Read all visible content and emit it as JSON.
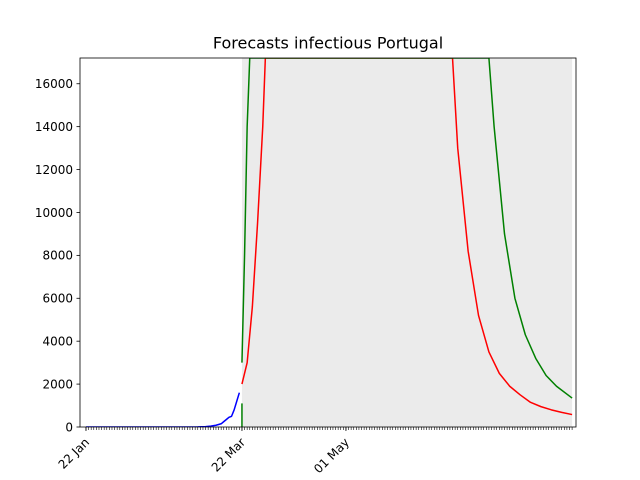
{
  "chart_data": {
    "type": "line",
    "title": "Forecasts infectious Portugal",
    "xlabel": "",
    "ylabel": "",
    "x_axis": {
      "type": "date",
      "range": [
        "2020-01-22",
        "2020-07-27"
      ],
      "tick_labels": [
        {
          "date": "2020-01-22",
          "label": "22 Jan"
        },
        {
          "date": "2020-03-22",
          "label": "22 Mar"
        },
        {
          "date": "2020-05-01",
          "label": "01 May"
        }
      ],
      "minor_ticks": "daily"
    },
    "y_axis": {
      "range": [
        0,
        17200
      ],
      "ticks": [
        0,
        2000,
        4000,
        6000,
        8000,
        10000,
        12000,
        14000,
        16000
      ]
    },
    "grid": false,
    "legend": "none",
    "band": {
      "description": "forecast uncertainty range",
      "color": "#ebebeb",
      "from": "2020-03-22",
      "to": "2020-07-27"
    },
    "series": [
      {
        "role": "observed",
        "color": "#0000ff",
        "points": [
          [
            "2020-01-22",
            0
          ],
          [
            "2020-02-01",
            0
          ],
          [
            "2020-02-10",
            0
          ],
          [
            "2020-02-20",
            0
          ],
          [
            "2020-03-01",
            0
          ],
          [
            "2020-03-05",
            5
          ],
          [
            "2020-03-08",
            20
          ],
          [
            "2020-03-10",
            40
          ],
          [
            "2020-03-12",
            80
          ],
          [
            "2020-03-14",
            150
          ],
          [
            "2020-03-15",
            250
          ],
          [
            "2020-03-16",
            350
          ],
          [
            "2020-03-17",
            450
          ],
          [
            "2020-03-18",
            500
          ],
          [
            "2020-03-19",
            800
          ],
          [
            "2020-03-20",
            1200
          ],
          [
            "2020-03-21",
            1600
          ]
        ]
      },
      {
        "role": "forecast-central",
        "color": "#ff0000",
        "points": [
          [
            "2020-03-22",
            2000
          ],
          [
            "2020-03-24",
            3000
          ],
          [
            "2020-03-26",
            5600
          ],
          [
            "2020-03-28",
            9500
          ],
          [
            "2020-03-30",
            14000
          ],
          [
            "2020-03-31",
            17200
          ],
          [
            "2020-06-11",
            17200
          ],
          [
            "2020-06-13",
            13000
          ],
          [
            "2020-06-17",
            8200
          ],
          [
            "2020-06-21",
            5200
          ],
          [
            "2020-06-25",
            3500
          ],
          [
            "2020-06-29",
            2500
          ],
          [
            "2020-07-03",
            1900
          ],
          [
            "2020-07-07",
            1500
          ],
          [
            "2020-07-11",
            1150
          ],
          [
            "2020-07-15",
            950
          ],
          [
            "2020-07-19",
            800
          ],
          [
            "2020-07-23",
            680
          ],
          [
            "2020-07-27",
            580
          ]
        ]
      },
      {
        "role": "forecast-upper",
        "color": "#008000",
        "points": [
          [
            "2020-03-22",
            3000
          ],
          [
            "2020-03-23",
            8000
          ],
          [
            "2020-03-24",
            14000
          ],
          [
            "2020-03-25",
            17200
          ],
          [
            "2020-06-25",
            17200
          ],
          [
            "2020-06-27",
            14000
          ],
          [
            "2020-07-01",
            9000
          ],
          [
            "2020-07-05",
            6000
          ],
          [
            "2020-07-09",
            4300
          ],
          [
            "2020-07-13",
            3200
          ],
          [
            "2020-07-17",
            2400
          ],
          [
            "2020-07-21",
            1900
          ],
          [
            "2020-07-27",
            1350
          ]
        ]
      },
      {
        "role": "forecast-lower",
        "color": "#008000",
        "points": [
          [
            "2020-03-22",
            1100
          ],
          [
            "2020-03-22",
            0
          ]
        ]
      }
    ]
  }
}
